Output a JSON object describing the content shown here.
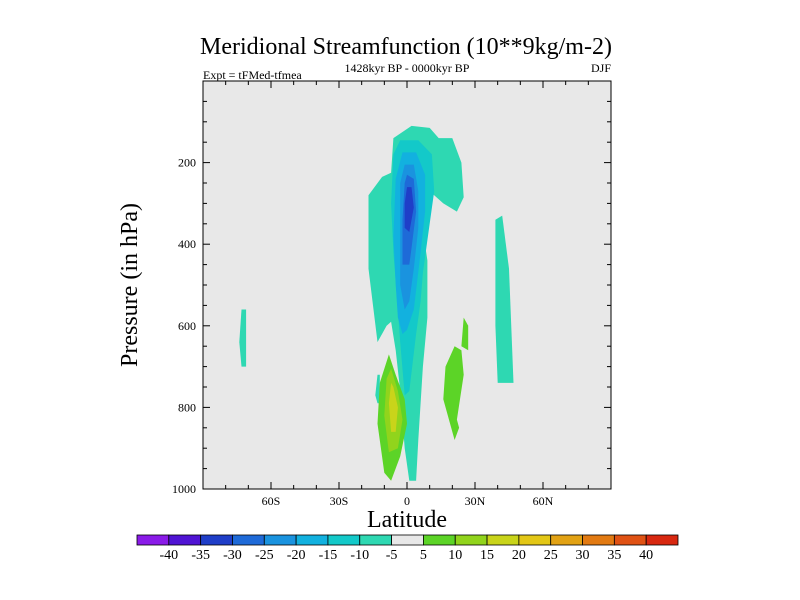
{
  "chart_data": {
    "type": "contour",
    "title": "Meridional Streamfunction (10**9kg/m-2)",
    "subtitle_left": "Expt = tFMed-tfmea",
    "subtitle_center": "1428kyr BP - 0000kyr BP",
    "subtitle_right": "DJF",
    "xlabel": "Latitude",
    "ylabel": "Pressure (in hPa)",
    "xlim": [
      -90,
      90
    ],
    "ylim": [
      0,
      1000
    ],
    "x_ticks": [
      {
        "value": -60,
        "label": "60S"
      },
      {
        "value": -30,
        "label": "30S"
      },
      {
        "value": 0,
        "label": "0"
      },
      {
        "value": 30,
        "label": "30N"
      },
      {
        "value": 60,
        "label": "60N"
      }
    ],
    "y_ticks": [
      {
        "value": 200,
        "label": "200"
      },
      {
        "value": 400,
        "label": "400"
      },
      {
        "value": 600,
        "label": "600"
      },
      {
        "value": 800,
        "label": "800"
      },
      {
        "value": 1000,
        "label": "1000"
      }
    ],
    "background_color": "#e8e8e8",
    "colorbar": {
      "labels": [
        "-40",
        "-35",
        "-30",
        "-25",
        "-20",
        "-15",
        "-10",
        "-5",
        "5",
        "10",
        "15",
        "20",
        "25",
        "30",
        "35",
        "40"
      ],
      "colors": [
        "#8a1be8",
        "#5014d4",
        "#1f3ec8",
        "#1e6ad8",
        "#1a93df",
        "#12b1df",
        "#13c9c9",
        "#2ed8b2",
        "#e8e8e8",
        "#5cd427",
        "#91d41c",
        "#c9d41a",
        "#e3c716",
        "#e2a214",
        "#e27a12",
        "#e05214",
        "#d82810"
      ]
    },
    "contours": [
      {
        "level": "-5",
        "color": "#2ed8b2",
        "points": [
          [
            -73,
            700
          ],
          [
            -74,
            640
          ],
          [
            -73,
            560
          ],
          [
            -71,
            560
          ],
          [
            -71,
            700
          ]
        ]
      },
      {
        "level": "-5",
        "color": "#2ed8b2",
        "points": [
          [
            -13,
            790
          ],
          [
            -14,
            770
          ],
          [
            -13,
            720
          ],
          [
            -12,
            720
          ],
          [
            -12,
            790
          ]
        ]
      },
      {
        "level": "-5",
        "color": "#2ed8b2",
        "points": [
          [
            40,
            740
          ],
          [
            39,
            600
          ],
          [
            39,
            340
          ],
          [
            42,
            330
          ],
          [
            45,
            460
          ],
          [
            47,
            740
          ]
        ]
      },
      {
        "level": "-5",
        "color": "#2ed8b2",
        "points": [
          [
            -13,
            640
          ],
          [
            -17,
            460
          ],
          [
            -17,
            280
          ],
          [
            -11,
            235
          ],
          [
            -7,
            225
          ],
          [
            -6,
            140
          ],
          [
            2,
            110
          ],
          [
            10,
            115
          ],
          [
            14,
            140
          ],
          [
            20,
            140
          ],
          [
            24,
            200
          ],
          [
            25,
            285
          ],
          [
            22,
            320
          ],
          [
            16,
            300
          ],
          [
            10,
            270
          ],
          [
            5,
            290
          ],
          [
            9,
            440
          ],
          [
            9,
            580
          ],
          [
            7,
            700
          ],
          [
            5,
            880
          ],
          [
            4,
            980
          ],
          [
            1,
            980
          ],
          [
            -1,
            900
          ],
          [
            -3,
            760
          ],
          [
            -5,
            660
          ],
          [
            -7,
            590
          ],
          [
            -9,
            600
          ]
        ]
      },
      {
        "level": "-10",
        "color": "#13c9c9",
        "points": [
          [
            -6,
            420
          ],
          [
            -7,
            300
          ],
          [
            -6,
            180
          ],
          [
            -3,
            145
          ],
          [
            5,
            145
          ],
          [
            11,
            180
          ],
          [
            12,
            270
          ],
          [
            9,
            390
          ],
          [
            7,
            470
          ],
          [
            6,
            540
          ],
          [
            4,
            620
          ],
          [
            1,
            760
          ],
          [
            -1,
            770
          ],
          [
            -3,
            640
          ],
          [
            -4,
            560
          ]
        ]
      },
      {
        "level": "-15",
        "color": "#12b1df",
        "points": [
          [
            -5,
            500
          ],
          [
            -6,
            380
          ],
          [
            -5,
            240
          ],
          [
            -2,
            175
          ],
          [
            4,
            175
          ],
          [
            8,
            230
          ],
          [
            8,
            320
          ],
          [
            6,
            420
          ],
          [
            3,
            560
          ],
          [
            0,
            610
          ],
          [
            -2,
            620
          ],
          [
            -4,
            580
          ]
        ]
      },
      {
        "level": "-20",
        "color": "#1a93df",
        "points": [
          [
            -3,
            500
          ],
          [
            -3,
            370
          ],
          [
            -3,
            250
          ],
          [
            -1,
            205
          ],
          [
            3,
            205
          ],
          [
            5,
            270
          ],
          [
            5,
            360
          ],
          [
            3,
            460
          ],
          [
            1,
            540
          ],
          [
            -1,
            560
          ]
        ]
      },
      {
        "level": "-25",
        "color": "#1e6ad8",
        "points": [
          [
            -2,
            450
          ],
          [
            -2,
            340
          ],
          [
            -1,
            250
          ],
          [
            0,
            230
          ],
          [
            3,
            240
          ],
          [
            4,
            320
          ],
          [
            2,
            410
          ],
          [
            1,
            450
          ]
        ]
      },
      {
        "level": "-30",
        "color": "#1f3ec8",
        "points": [
          [
            -1,
            360
          ],
          [
            -1,
            300
          ],
          [
            0,
            260
          ],
          [
            2,
            260
          ],
          [
            3,
            310
          ],
          [
            1,
            370
          ]
        ]
      },
      {
        "level": "5",
        "color": "#5cd427",
        "points": [
          [
            -10,
            960
          ],
          [
            -13,
            840
          ],
          [
            -12,
            740
          ],
          [
            -8,
            670
          ],
          [
            -5,
            720
          ],
          [
            -1,
            780
          ],
          [
            0,
            840
          ],
          [
            -3,
            920
          ],
          [
            -7,
            980
          ]
        ]
      },
      {
        "level": "5",
        "color": "#5cd427",
        "points": [
          [
            21,
            880
          ],
          [
            16,
            780
          ],
          [
            17,
            700
          ],
          [
            21,
            650
          ],
          [
            24,
            660
          ],
          [
            25,
            720
          ],
          [
            22,
            830
          ],
          [
            23,
            850
          ]
        ]
      },
      {
        "level": "5",
        "color": "#5cd427",
        "points": [
          [
            24,
            650
          ],
          [
            25,
            580
          ],
          [
            27,
            600
          ],
          [
            27,
            660
          ]
        ]
      },
      {
        "level": "10",
        "color": "#91d41c",
        "points": [
          [
            -8,
            910
          ],
          [
            -10,
            820
          ],
          [
            -9,
            730
          ],
          [
            -7,
            705
          ],
          [
            -4,
            760
          ],
          [
            -2,
            830
          ],
          [
            -4,
            900
          ]
        ]
      },
      {
        "level": "15",
        "color": "#c9d41a",
        "points": [
          [
            -7,
            860
          ],
          [
            -8,
            790
          ],
          [
            -7,
            740
          ],
          [
            -6,
            750
          ],
          [
            -4,
            800
          ],
          [
            -5,
            860
          ]
        ]
      }
    ]
  }
}
